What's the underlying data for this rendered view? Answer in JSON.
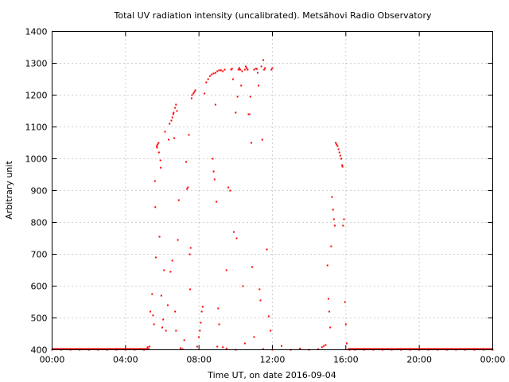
{
  "chart_data": {
    "type": "scatter",
    "title": "Total UV radiation intensity (uncalibrated). Metsähovi Radio Observatory",
    "xlabel": "Time UT, on date 2016-09-04",
    "ylabel": "Arbitrary unit",
    "xlim": [
      0,
      24
    ],
    "ylim": [
      400,
      1400
    ],
    "x_ticks": [
      {
        "value": 0,
        "label": "00:00"
      },
      {
        "value": 4,
        "label": "04:00"
      },
      {
        "value": 8,
        "label": "08:00"
      },
      {
        "value": 12,
        "label": "12:00"
      },
      {
        "value": 16,
        "label": "16:00"
      },
      {
        "value": 20,
        "label": "20:00"
      },
      {
        "value": 24,
        "label": "00:00"
      }
    ],
    "y_ticks": [
      400,
      500,
      600,
      700,
      800,
      900,
      1000,
      1100,
      1200,
      1300,
      1400
    ],
    "grid": true,
    "marker_color": "#ff0000",
    "series": [
      {
        "points": [
          [
            0.0,
            400
          ],
          [
            0.5,
            400
          ],
          [
            1.0,
            400
          ],
          [
            1.5,
            400
          ],
          [
            2.0,
            400
          ],
          [
            2.5,
            400
          ],
          [
            3.0,
            400
          ],
          [
            3.5,
            400
          ],
          [
            4.0,
            400
          ],
          [
            4.5,
            400
          ],
          [
            5.0,
            400
          ],
          [
            5.2,
            408
          ],
          [
            5.3,
            410
          ],
          [
            5.35,
            520
          ],
          [
            5.45,
            575
          ],
          [
            5.5,
            508
          ],
          [
            5.55,
            480
          ],
          [
            5.6,
            930
          ],
          [
            5.62,
            848
          ],
          [
            5.65,
            690
          ],
          [
            5.7,
            1040
          ],
          [
            5.72,
            1035
          ],
          [
            5.75,
            1045
          ],
          [
            5.8,
            1050
          ],
          [
            5.82,
            1020
          ],
          [
            5.85,
            755
          ],
          [
            5.9,
            995
          ],
          [
            5.92,
            972
          ],
          [
            5.95,
            570
          ],
          [
            6.0,
            470
          ],
          [
            6.05,
            495
          ],
          [
            6.1,
            650
          ],
          [
            6.15,
            1085
          ],
          [
            6.2,
            460
          ],
          [
            6.3,
            540
          ],
          [
            6.35,
            1060
          ],
          [
            6.4,
            1110
          ],
          [
            6.45,
            645
          ],
          [
            6.5,
            1120
          ],
          [
            6.55,
            1130
          ],
          [
            6.6,
            1140
          ],
          [
            6.62,
            1145
          ],
          [
            6.7,
            1160
          ],
          [
            6.75,
            1170
          ],
          [
            6.8,
            1150
          ],
          [
            6.65,
            1065
          ],
          [
            6.55,
            680
          ],
          [
            6.7,
            520
          ],
          [
            6.75,
            460
          ],
          [
            6.85,
            745
          ],
          [
            6.9,
            870
          ],
          [
            7.0,
            405
          ],
          [
            7.1,
            402
          ],
          [
            7.2,
            430
          ],
          [
            7.3,
            990
          ],
          [
            7.35,
            905
          ],
          [
            7.4,
            910
          ],
          [
            7.45,
            1075
          ],
          [
            7.5,
            700
          ],
          [
            7.52,
            590
          ],
          [
            7.55,
            720
          ],
          [
            7.6,
            1190
          ],
          [
            7.62,
            1200
          ],
          [
            7.7,
            1205
          ],
          [
            7.75,
            1210
          ],
          [
            7.8,
            1215
          ],
          [
            7.9,
            410
          ],
          [
            8.0,
            440
          ],
          [
            8.05,
            460
          ],
          [
            8.1,
            485
          ],
          [
            8.15,
            520
          ],
          [
            8.2,
            535
          ],
          [
            8.3,
            1205
          ],
          [
            8.4,
            1240
          ],
          [
            8.5,
            1250
          ],
          [
            8.6,
            1260
          ],
          [
            8.7,
            1265
          ],
          [
            8.8,
            1268
          ],
          [
            8.9,
            1270
          ],
          [
            9.0,
            1275
          ],
          [
            9.1,
            1278
          ],
          [
            9.2,
            1278
          ],
          [
            9.3,
            1275
          ],
          [
            9.4,
            1280
          ],
          [
            8.75,
            1000
          ],
          [
            8.8,
            960
          ],
          [
            8.85,
            935
          ],
          [
            8.9,
            1170
          ],
          [
            8.95,
            865
          ],
          [
            9.05,
            530
          ],
          [
            9.1,
            480
          ],
          [
            9.3,
            408
          ],
          [
            9.5,
            650
          ],
          [
            9.6,
            910
          ],
          [
            9.7,
            900
          ],
          [
            9.75,
            1280
          ],
          [
            9.8,
            1283
          ],
          [
            9.85,
            1250
          ],
          [
            9.9,
            770
          ],
          [
            10.0,
            1145
          ],
          [
            10.05,
            750
          ],
          [
            10.1,
            1195
          ],
          [
            10.15,
            1280
          ],
          [
            10.2,
            1285
          ],
          [
            10.25,
            1280
          ],
          [
            10.3,
            1230
          ],
          [
            10.35,
            1275
          ],
          [
            10.4,
            600
          ],
          [
            10.5,
            1280
          ],
          [
            10.55,
            1290
          ],
          [
            10.6,
            1285
          ],
          [
            10.65,
            1280
          ],
          [
            10.7,
            1140
          ],
          [
            10.75,
            1140
          ],
          [
            10.8,
            1195
          ],
          [
            10.85,
            1050
          ],
          [
            10.9,
            660
          ],
          [
            11.0,
            1280
          ],
          [
            11.1,
            1283
          ],
          [
            11.15,
            1282
          ],
          [
            11.2,
            1270
          ],
          [
            11.25,
            1230
          ],
          [
            11.3,
            590
          ],
          [
            11.35,
            555
          ],
          [
            11.4,
            1290
          ],
          [
            11.45,
            1060
          ],
          [
            11.5,
            1310
          ],
          [
            11.55,
            1280
          ],
          [
            11.6,
            1285
          ],
          [
            11.7,
            715
          ],
          [
            11.8,
            505
          ],
          [
            11.9,
            460
          ],
          [
            11.95,
            1280
          ],
          [
            12.0,
            1285
          ],
          [
            9.0,
            410
          ],
          [
            9.5,
            404
          ],
          [
            10.0,
            400
          ],
          [
            10.5,
            420
          ],
          [
            11.0,
            440
          ],
          [
            11.5,
            402
          ],
          [
            12.0,
            400
          ],
          [
            12.5,
            412
          ],
          [
            13.0,
            400
          ],
          [
            13.5,
            404
          ],
          [
            14.0,
            400
          ],
          [
            14.5,
            402
          ],
          [
            14.7,
            408
          ],
          [
            14.8,
            412
          ],
          [
            14.9,
            415
          ],
          [
            15.0,
            665
          ],
          [
            15.05,
            560
          ],
          [
            15.1,
            520
          ],
          [
            15.15,
            470
          ],
          [
            15.2,
            725
          ],
          [
            15.25,
            880
          ],
          [
            15.3,
            840
          ],
          [
            15.35,
            810
          ],
          [
            15.4,
            790
          ],
          [
            15.45,
            1050
          ],
          [
            15.5,
            1045
          ],
          [
            15.55,
            1040
          ],
          [
            15.6,
            1030
          ],
          [
            15.65,
            1020
          ],
          [
            15.7,
            1010
          ],
          [
            15.75,
            1000
          ],
          [
            15.8,
            980
          ],
          [
            15.82,
            975
          ],
          [
            15.85,
            790
          ],
          [
            15.9,
            810
          ],
          [
            15.95,
            550
          ],
          [
            16.0,
            480
          ],
          [
            16.05,
            420
          ],
          [
            16.2,
            400
          ],
          [
            16.5,
            400
          ],
          [
            17.0,
            400
          ],
          [
            17.5,
            400
          ],
          [
            18.0,
            400
          ],
          [
            18.5,
            400
          ],
          [
            19.0,
            400
          ],
          [
            19.5,
            400
          ],
          [
            20.0,
            400
          ],
          [
            20.5,
            400
          ],
          [
            21.0,
            400
          ],
          [
            21.5,
            400
          ],
          [
            22.0,
            400
          ],
          [
            22.5,
            400
          ],
          [
            23.0,
            400
          ],
          [
            23.5,
            400
          ],
          [
            24.0,
            400
          ]
        ]
      }
    ]
  }
}
